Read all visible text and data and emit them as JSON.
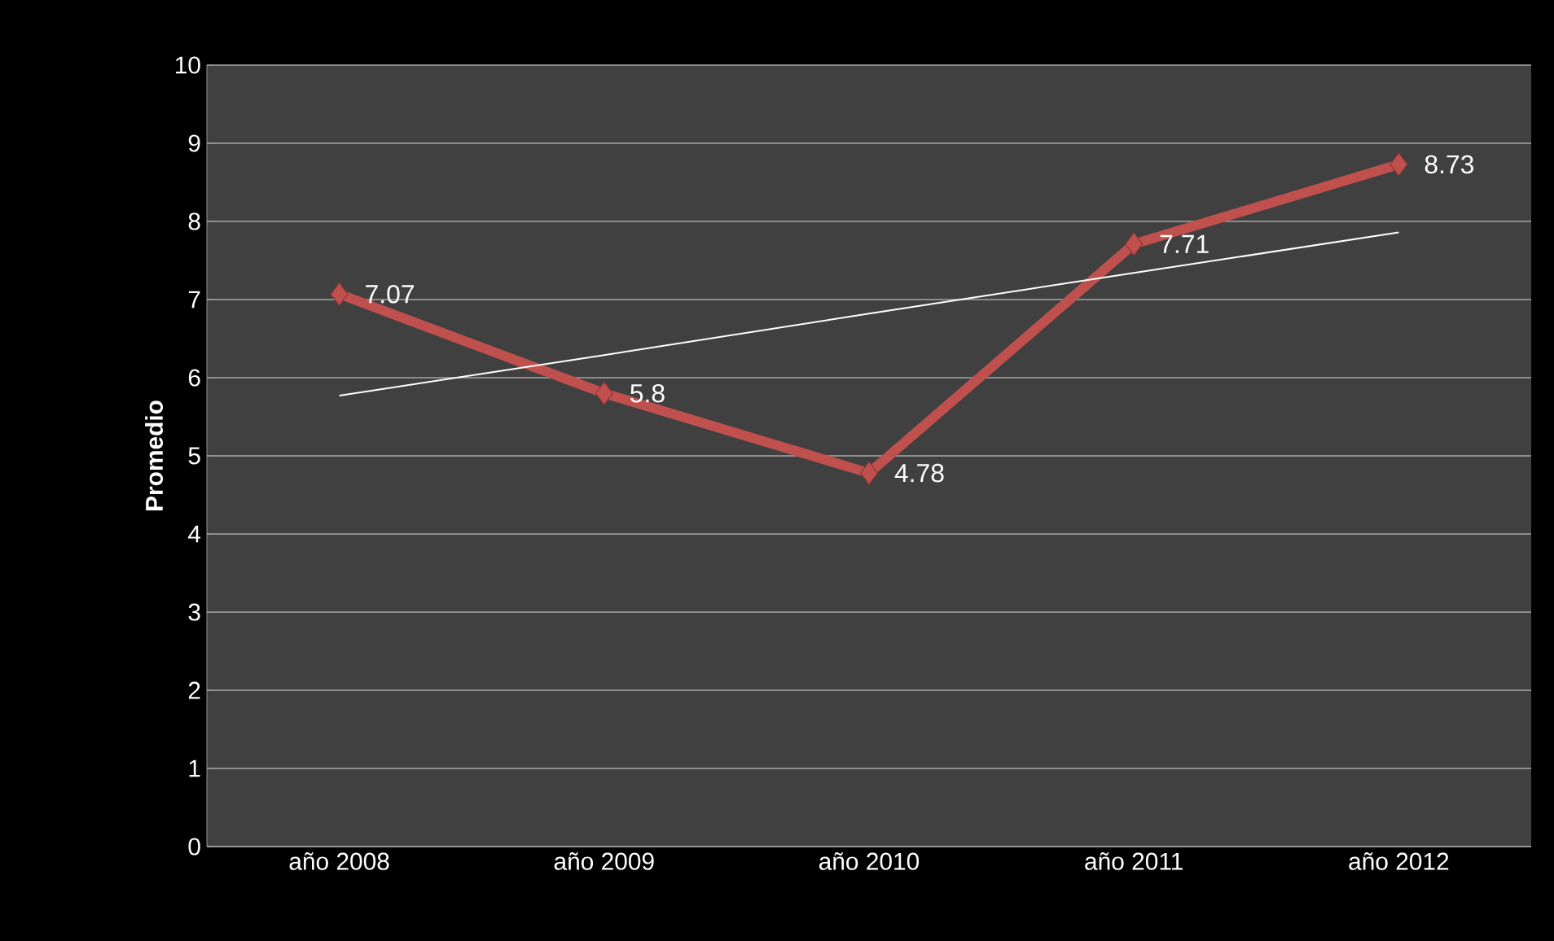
{
  "chart_data": {
    "type": "line",
    "ylabel": "Promedio",
    "categories": [
      "año 2008",
      "año 2009",
      "año 2010",
      "año 2011",
      "año 2012"
    ],
    "series": [
      {
        "color": "#c0504d",
        "marker": "diamond",
        "values": [
          7.07,
          5.8,
          4.78,
          7.71,
          8.73
        ],
        "value_labels": [
          "7.07",
          "5.8",
          "4.78",
          "7.71",
          "8.73"
        ]
      },
      {
        "type": "line",
        "color": "#ffffff",
        "marker": "none",
        "values": [
          5.77,
          6.29,
          6.82,
          7.34,
          7.86
        ]
      }
    ],
    "ylim": [
      0,
      10
    ],
    "yticks": [
      0,
      1,
      2,
      3,
      4,
      5,
      6,
      7,
      8,
      9,
      10
    ],
    "grid": "y"
  }
}
